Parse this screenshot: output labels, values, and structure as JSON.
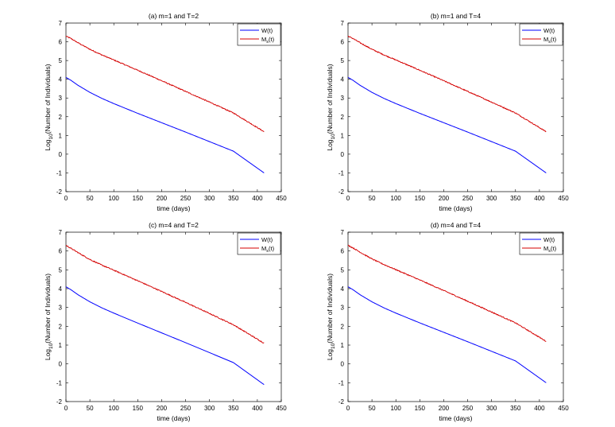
{
  "chart_data": [
    {
      "type": "line",
      "title": "(a) m=1 and T=2",
      "xlabel": "time (days)",
      "ylabel": "Log10(Number of Individuals)",
      "xlim": [
        0,
        450
      ],
      "ylim": [
        -2,
        7
      ],
      "xticks": [
        0,
        50,
        100,
        150,
        200,
        250,
        300,
        350,
        400,
        450
      ],
      "yticks": [
        -2,
        -1,
        0,
        1,
        2,
        3,
        4,
        5,
        6,
        7
      ],
      "legend_position": "top-right",
      "series": [
        {
          "name": "W(t)",
          "legend_main": "W(t)",
          "legend_sub": "",
          "color": "#0000ff",
          "x": [
            0,
            10,
            25,
            50,
            75,
            100,
            150,
            200,
            250,
            300,
            350,
            414
          ],
          "y": [
            4.1,
            3.95,
            3.68,
            3.3,
            2.98,
            2.7,
            2.18,
            1.68,
            1.18,
            0.67,
            0.16,
            -1.0
          ]
        },
        {
          "name": "Ms(t)",
          "legend_main": "M",
          "legend_sub": "s",
          "legend_tail": "(t)",
          "color": "#d40000",
          "x": [
            0,
            10,
            25,
            50,
            75,
            100,
            150,
            200,
            250,
            300,
            350,
            414
          ],
          "y": [
            6.3,
            6.18,
            5.95,
            5.6,
            5.3,
            5.03,
            4.48,
            3.92,
            3.35,
            2.78,
            2.2,
            1.2
          ]
        }
      ]
    },
    {
      "type": "line",
      "title": "(b) m=1 and T=4",
      "xlabel": "time (days)",
      "ylabel": "Log10(Number of Individuals)",
      "xlim": [
        0,
        450
      ],
      "ylim": [
        -2,
        7
      ],
      "xticks": [
        0,
        50,
        100,
        150,
        200,
        250,
        300,
        350,
        400,
        450
      ],
      "yticks": [
        -2,
        -1,
        0,
        1,
        2,
        3,
        4,
        5,
        6,
        7
      ],
      "legend_position": "top-right",
      "series": [
        {
          "name": "W(t)",
          "legend_main": "W(t)",
          "legend_sub": "",
          "color": "#0000ff",
          "x": [
            0,
            10,
            25,
            50,
            75,
            100,
            150,
            200,
            250,
            300,
            350,
            414
          ],
          "y": [
            4.1,
            3.95,
            3.68,
            3.3,
            2.98,
            2.7,
            2.18,
            1.68,
            1.18,
            0.67,
            0.16,
            -1.0
          ]
        },
        {
          "name": "Ms(t)",
          "legend_main": "M",
          "legend_sub": "s",
          "legend_tail": "(t)",
          "color": "#d40000",
          "x": [
            0,
            10,
            25,
            50,
            75,
            100,
            150,
            200,
            250,
            300,
            350,
            414
          ],
          "y": [
            6.3,
            6.18,
            5.95,
            5.6,
            5.3,
            5.03,
            4.48,
            3.92,
            3.35,
            2.78,
            2.2,
            1.2
          ]
        }
      ]
    },
    {
      "type": "line",
      "title": "(c) m=4 and T=2",
      "xlabel": "time (days)",
      "ylabel": "Log10(Number of Individuals)",
      "xlim": [
        0,
        450
      ],
      "ylim": [
        -2,
        7
      ],
      "xticks": [
        0,
        50,
        100,
        150,
        200,
        250,
        300,
        350,
        400,
        450
      ],
      "yticks": [
        -2,
        -1,
        0,
        1,
        2,
        3,
        4,
        5,
        6,
        7
      ],
      "legend_position": "top-right",
      "series": [
        {
          "name": "W(t)",
          "legend_main": "W(t)",
          "legend_sub": "",
          "color": "#0000ff",
          "x": [
            0,
            10,
            25,
            50,
            75,
            100,
            150,
            200,
            250,
            300,
            350,
            414
          ],
          "y": [
            4.1,
            3.95,
            3.68,
            3.3,
            2.98,
            2.7,
            2.17,
            1.65,
            1.13,
            0.6,
            0.07,
            -1.1
          ]
        },
        {
          "name": "Ms(t)",
          "legend_main": "M",
          "legend_sub": "s",
          "legend_tail": "(t)",
          "color": "#d40000",
          "x": [
            0,
            10,
            25,
            50,
            75,
            100,
            150,
            200,
            250,
            300,
            350,
            414
          ],
          "y": [
            6.3,
            6.15,
            5.92,
            5.55,
            5.25,
            4.98,
            4.42,
            3.85,
            3.27,
            2.68,
            2.08,
            1.1
          ]
        }
      ]
    },
    {
      "type": "line",
      "title": "(d) m=4 and T=4",
      "xlabel": "time (days)",
      "ylabel": "Log10(Number of Individuals)",
      "xlim": [
        0,
        450
      ],
      "ylim": [
        -2,
        7
      ],
      "xticks": [
        0,
        50,
        100,
        150,
        200,
        250,
        300,
        350,
        400,
        450
      ],
      "yticks": [
        -2,
        -1,
        0,
        1,
        2,
        3,
        4,
        5,
        6,
        7
      ],
      "legend_position": "top-right",
      "series": [
        {
          "name": "W(t)",
          "legend_main": "W(t)",
          "legend_sub": "",
          "color": "#0000ff",
          "x": [
            0,
            10,
            25,
            50,
            75,
            100,
            150,
            200,
            250,
            300,
            350,
            414
          ],
          "y": [
            4.1,
            3.95,
            3.68,
            3.3,
            2.98,
            2.7,
            2.18,
            1.68,
            1.18,
            0.67,
            0.16,
            -1.0
          ]
        },
        {
          "name": "Ms(t)",
          "legend_main": "M",
          "legend_sub": "s",
          "legend_tail": "(t)",
          "color": "#d40000",
          "x": [
            0,
            10,
            25,
            50,
            75,
            100,
            150,
            200,
            250,
            300,
            350,
            414
          ],
          "y": [
            6.3,
            6.17,
            5.94,
            5.58,
            5.28,
            5.01,
            4.46,
            3.9,
            3.33,
            2.76,
            2.18,
            1.2
          ]
        }
      ]
    }
  ]
}
